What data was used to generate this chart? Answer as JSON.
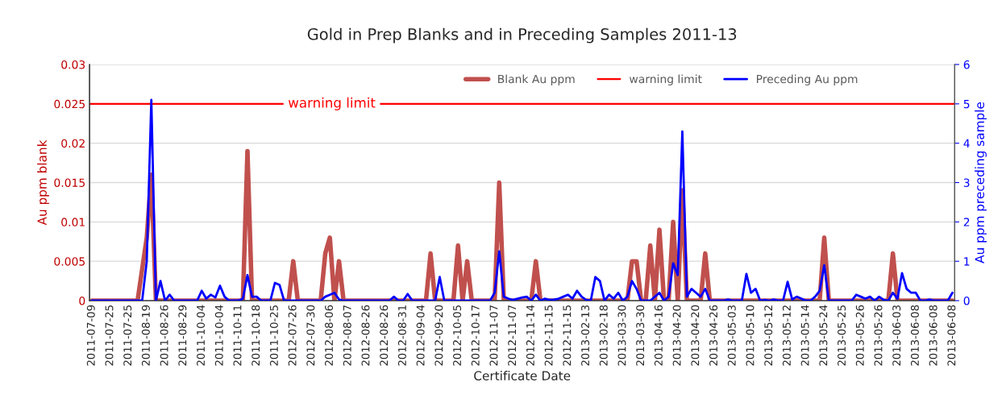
{
  "chart_data": {
    "type": "line",
    "title": "Gold in Prep Blanks and in Preceding Samples 2011-13",
    "xlabel": "Certificate Date",
    "ylabel": "Au ppm blank",
    "y2label": "Au ppm preceding sample",
    "categories": [
      "2011-07-09",
      null,
      null,
      null,
      "2011-07-25",
      null,
      null,
      null,
      "2011-07-25",
      null,
      null,
      null,
      "2011-08-19",
      null,
      null,
      null,
      "2011-08-26",
      null,
      null,
      null,
      "2011-08-29",
      null,
      null,
      null,
      "2011-10-04",
      null,
      null,
      null,
      "2011-10-04",
      null,
      null,
      null,
      "2011-10-11",
      null,
      null,
      null,
      "2011-10-18",
      null,
      null,
      null,
      "2011-10-25",
      null,
      null,
      null,
      "2012-07-26",
      null,
      null,
      null,
      "2012-07-30",
      null,
      null,
      null,
      "2012-08-06",
      null,
      null,
      null,
      "2012-08-07",
      null,
      null,
      null,
      "2012-08-26",
      null,
      null,
      null,
      "2012-08-26",
      null,
      null,
      null,
      "2012-08-31",
      null,
      null,
      null,
      "2012-09-04",
      null,
      null,
      null,
      "2012-09-20",
      null,
      null,
      null,
      "2012-10-05",
      null,
      null,
      null,
      "2012-10-17",
      null,
      null,
      null,
      "2012-11-07",
      null,
      null,
      null,
      "2012-11-07",
      null,
      null,
      null,
      "2012-11-14",
      null,
      null,
      null,
      "2012-11-15",
      null,
      null,
      null,
      "2012-11-15",
      null,
      null,
      null,
      "2013-02-13",
      null,
      null,
      null,
      "2013-02-18",
      null,
      null,
      null,
      "2013-03-30",
      null,
      null,
      null,
      "2013-03-30",
      null,
      null,
      null,
      "2013-04-16",
      null,
      null,
      null,
      "2013-04-20",
      null,
      null,
      null,
      "2013-04-20",
      null,
      null,
      null,
      "2013-04-26",
      null,
      null,
      null,
      "2013-05-03",
      null,
      null,
      null,
      "2013-05-10",
      null,
      null,
      null,
      "2013-05-12",
      null,
      null,
      null,
      "2013-05-12",
      null,
      null,
      null,
      "2013-05-14",
      null,
      null,
      null,
      "2013-05-24",
      null,
      null,
      null,
      "2013-05-25",
      null,
      null,
      null,
      "2013-05-26",
      null,
      null,
      null,
      "2013-05-26",
      null,
      null,
      null,
      "2013-06-03",
      null,
      null,
      null,
      "2013-06-08",
      null,
      null,
      null,
      "2013-06-08",
      null,
      null,
      null,
      "2013-06-08"
    ],
    "series": [
      {
        "name": "Blank Au ppm",
        "color": "#c0504d",
        "values": [
          0,
          0,
          0,
          0,
          0,
          0,
          0,
          0,
          0,
          0,
          0,
          0.004,
          0.008,
          0.016,
          0,
          0,
          0,
          0,
          0,
          0,
          0,
          0,
          0,
          0,
          0,
          0,
          0,
          0,
          0,
          0,
          0,
          0,
          0,
          0,
          0.019,
          0,
          0,
          0,
          0,
          0,
          0,
          0,
          0,
          0,
          0.005,
          0,
          0,
          0,
          0,
          0,
          0,
          0.006,
          0.008,
          0,
          0.005,
          0,
          0,
          0,
          0,
          0,
          0,
          0,
          0,
          0,
          0,
          0,
          0,
          0,
          0,
          0,
          0,
          0,
          0,
          0,
          0.006,
          0,
          0,
          0,
          0,
          0,
          0.007,
          0,
          0.005,
          0,
          0,
          0,
          0,
          0,
          0,
          0.015,
          0,
          0,
          0,
          0,
          0,
          0,
          0,
          0.005,
          0,
          0,
          0,
          0,
          0,
          0,
          0,
          0,
          0,
          0,
          0,
          0,
          0,
          0,
          0,
          0,
          0,
          0,
          0,
          0,
          0.005,
          0.005,
          0,
          0,
          0.007,
          0,
          0.009,
          0,
          0,
          0.01,
          0,
          0.014,
          0,
          0,
          0,
          0,
          0.006,
          0,
          0,
          0,
          0,
          0,
          0,
          0,
          0,
          0,
          0,
          0,
          0,
          0,
          0,
          0,
          0,
          0,
          0,
          0,
          0,
          0,
          0,
          0,
          0,
          0,
          0.008,
          0,
          0,
          0,
          0,
          0,
          0,
          0,
          0,
          0,
          0,
          0,
          0,
          0,
          0,
          0.006,
          0,
          0,
          0,
          0,
          0,
          0,
          0,
          0,
          0,
          0,
          0,
          0,
          0
        ]
      },
      {
        "name": "Preceding Au ppm",
        "color": "#0000ff",
        "axis": "y2",
        "values": [
          0,
          0,
          0,
          0,
          0,
          0,
          0,
          0,
          0,
          0,
          0,
          0,
          1.0,
          5.1,
          0,
          0.5,
          0,
          0.15,
          0,
          0,
          0,
          0,
          0,
          0,
          0.25,
          0.05,
          0.15,
          0.08,
          0.38,
          0.1,
          0,
          0,
          0,
          0.05,
          0.65,
          0.1,
          0.1,
          0,
          0,
          0,
          0.45,
          0.4,
          0,
          0,
          0,
          0,
          0,
          0,
          0,
          0,
          0,
          0.1,
          0.15,
          0.2,
          0.03,
          0,
          0,
          0,
          0,
          0,
          0,
          0,
          0,
          0,
          0,
          0,
          0.1,
          0,
          0,
          0.17,
          0,
          0,
          0,
          0,
          0,
          0,
          0.6,
          0,
          0,
          0,
          0,
          0,
          0,
          0,
          0,
          0,
          0,
          0,
          0.2,
          1.25,
          0.1,
          0.05,
          0.02,
          0.05,
          0.08,
          0.1,
          0,
          0.15,
          0,
          0.05,
          0.02,
          0.03,
          0.05,
          0.1,
          0.15,
          0.05,
          0.25,
          0.1,
          0.02,
          0,
          0.6,
          0.5,
          0,
          0.15,
          0.05,
          0.2,
          0,
          0.1,
          0.5,
          0.3,
          0,
          0,
          0,
          0.1,
          0.2,
          0,
          0.1,
          0.95,
          0.65,
          4.3,
          0.1,
          0.3,
          0.2,
          0.1,
          0.3,
          0,
          0,
          0,
          0,
          0.03,
          0,
          0,
          0,
          0.68,
          0.2,
          0.3,
          0,
          0.02,
          0,
          0.03,
          0,
          0,
          0.48,
          0.03,
          0.1,
          0.05,
          0,
          0,
          0.1,
          0.25,
          0.9,
          0,
          0,
          0,
          0,
          0,
          0,
          0.15,
          0.1,
          0.05,
          0.1,
          0,
          0.1,
          0.02,
          0,
          0.2,
          0.05,
          0.7,
          0.3,
          0.2,
          0.2,
          0,
          0,
          0.03,
          0,
          0,
          0,
          0,
          0.2
        ]
      }
    ],
    "ref_lines": [
      {
        "axis": "y",
        "value": 0.025,
        "label": "warning limit",
        "color": "#ff0000"
      }
    ],
    "annotations": [
      {
        "text": "warning limit",
        "y": 0.025
      }
    ],
    "ylim": [
      0,
      0.03
    ],
    "yticks": [
      0,
      0.005,
      0.01,
      0.015,
      0.02,
      0.025,
      0.03
    ],
    "y2lim": [
      0,
      6
    ],
    "y2ticks": [
      0,
      1,
      2,
      3,
      4,
      5,
      6
    ],
    "grid": "y",
    "legend": "top right"
  }
}
